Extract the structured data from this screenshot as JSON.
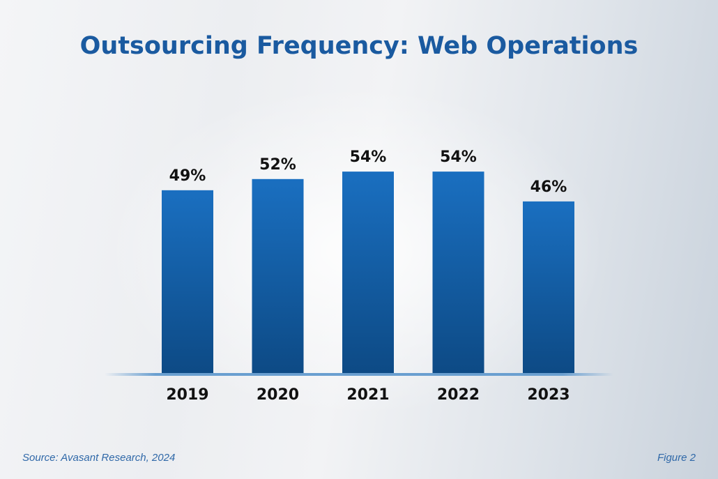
{
  "chart_data": {
    "type": "bar",
    "title": "Outsourcing Frequency: Web Operations",
    "categories": [
      "2019",
      "2020",
      "2021",
      "2022",
      "2023"
    ],
    "values": [
      49,
      52,
      54,
      54,
      46
    ],
    "data_labels": [
      "49%",
      "52%",
      "54%",
      "54%",
      "46%"
    ],
    "unit": "%",
    "xlabel": "",
    "ylabel": "",
    "ylim": [
      0,
      60
    ],
    "grid": false,
    "colors": {
      "bar_top": "#1a6fc0",
      "bar_bottom": "#0d4a85",
      "title": "#1a5aa0",
      "baseline": "#6a9fd0"
    }
  },
  "footer": {
    "source": "Source: Avasant Research, 2024",
    "figure": "Figure 2"
  }
}
